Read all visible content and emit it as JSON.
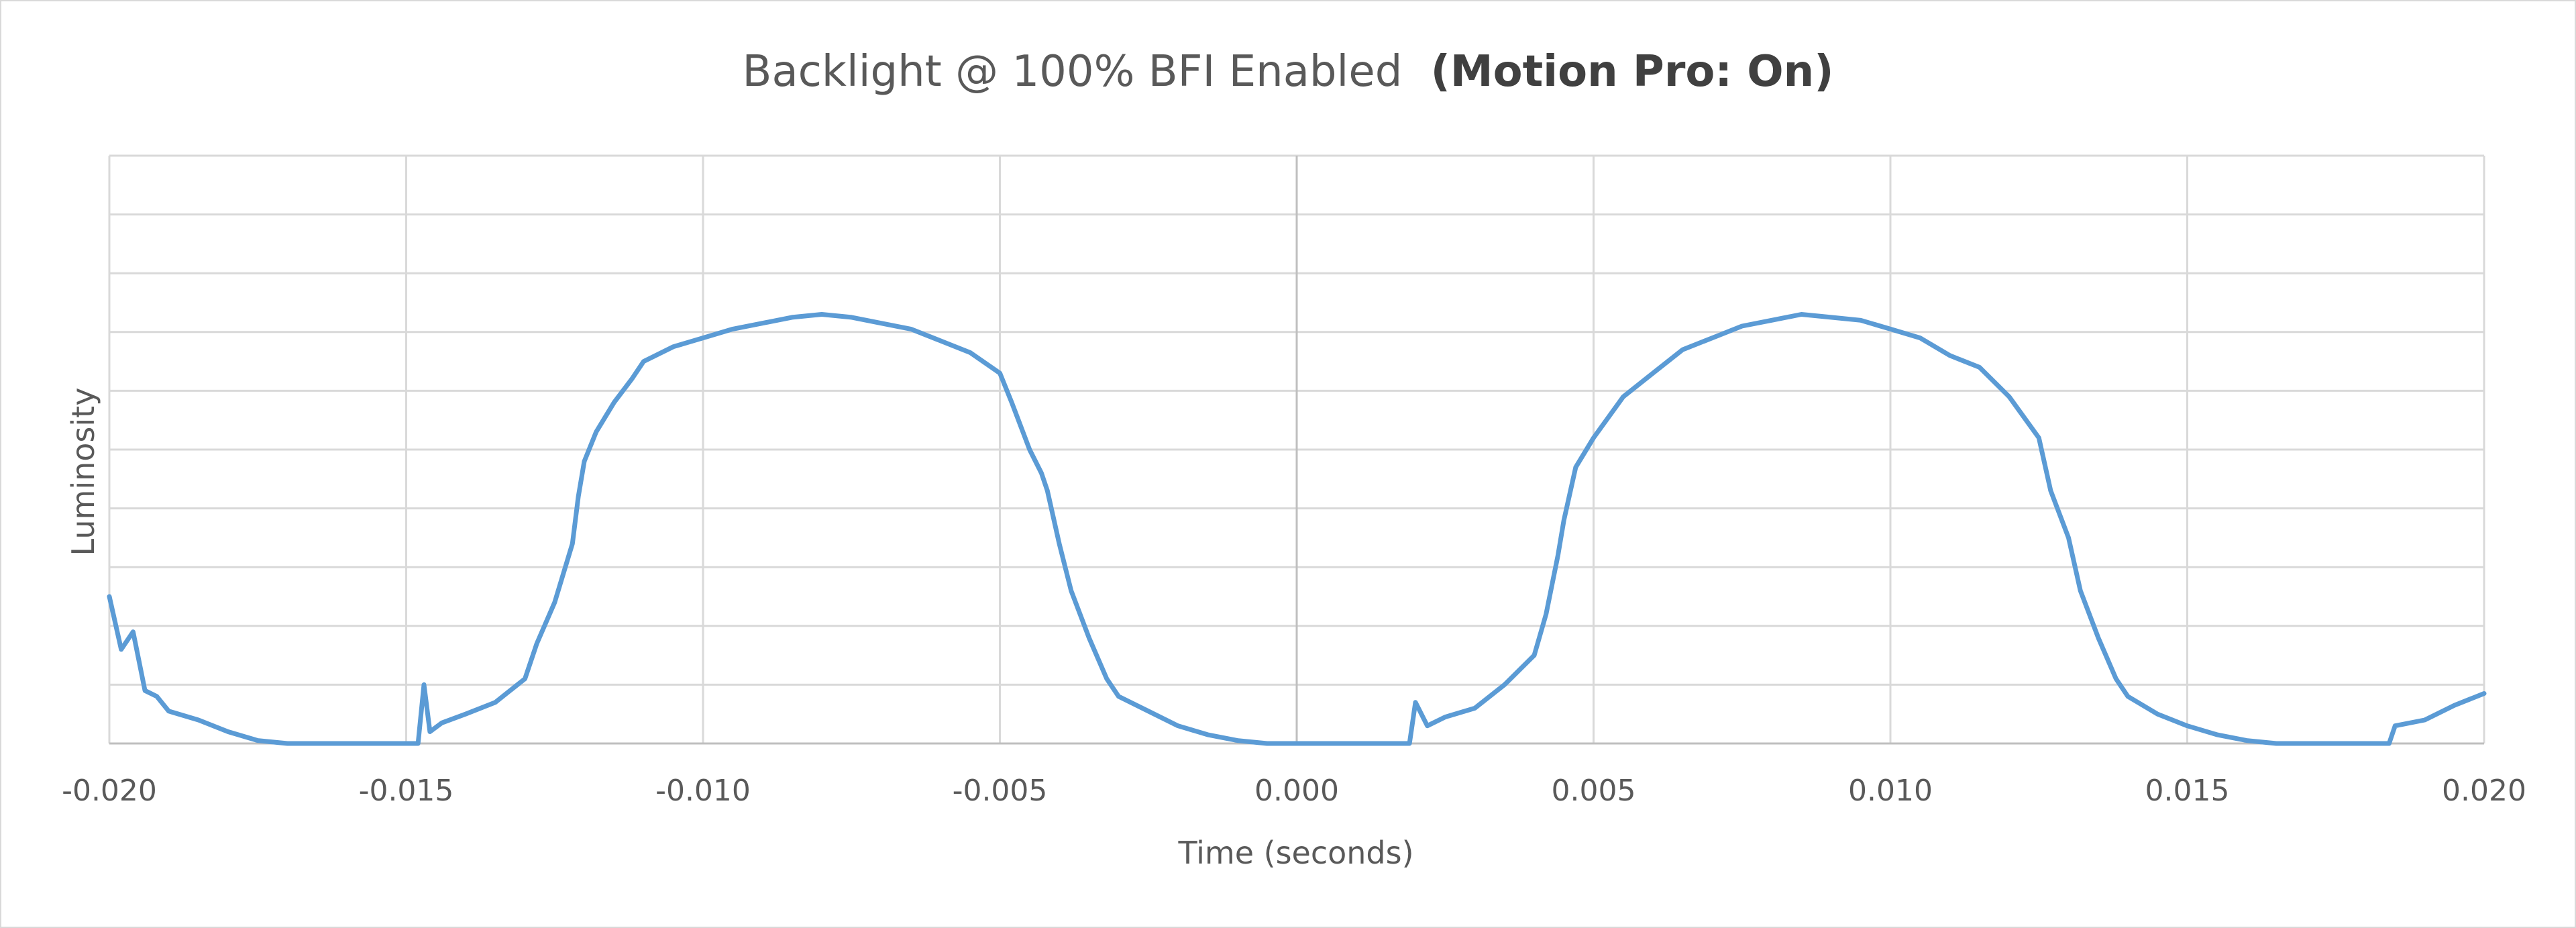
{
  "chart_data": {
    "type": "line",
    "title": "Backlight @ 100% BFI Enabled",
    "title_bold": "(Motion Pro: On)",
    "xlabel": "Time (seconds)",
    "ylabel": "Luminosity",
    "xlim": [
      -0.02,
      0.02
    ],
    "ylim": [
      0,
      10
    ],
    "x_ticks": [
      -0.02,
      -0.015,
      -0.01,
      -0.005,
      0,
      0.005,
      0.01,
      0.015,
      0.02
    ],
    "x_tick_labels": [
      "-0.020",
      "-0.015",
      "-0.010",
      "-0.005",
      "0.000",
      "0.005",
      "0.010",
      "0.015",
      "0.020"
    ],
    "y_gridlines": [
      1,
      2,
      3,
      4,
      5,
      6,
      7,
      8,
      9,
      10
    ],
    "y_tick_labels_visible": false,
    "grid": true,
    "line_color": "#5b9bd5",
    "series": [
      {
        "values": [
          [
            -0.02,
            2.5
          ],
          [
            -0.0198,
            1.6
          ],
          [
            -0.0196,
            1.9
          ],
          [
            -0.0194,
            0.9
          ],
          [
            -0.0192,
            0.8
          ],
          [
            -0.019,
            0.55
          ],
          [
            -0.0185,
            0.4
          ],
          [
            -0.018,
            0.2
          ],
          [
            -0.0175,
            0.05
          ],
          [
            -0.017,
            0.0
          ],
          [
            -0.016,
            0.0
          ],
          [
            -0.015,
            0.0
          ],
          [
            -0.0148,
            0.0
          ],
          [
            -0.0147,
            1.0
          ],
          [
            -0.0146,
            0.2
          ],
          [
            -0.0144,
            0.35
          ],
          [
            -0.014,
            0.5
          ],
          [
            -0.0135,
            0.7
          ],
          [
            -0.013,
            1.1
          ],
          [
            -0.0128,
            1.7
          ],
          [
            -0.0125,
            2.4
          ],
          [
            -0.0122,
            3.4
          ],
          [
            -0.0121,
            4.2
          ],
          [
            -0.012,
            4.8
          ],
          [
            -0.0118,
            5.3
          ],
          [
            -0.0115,
            5.8
          ],
          [
            -0.0112,
            6.2
          ],
          [
            -0.011,
            6.5
          ],
          [
            -0.0105,
            6.75
          ],
          [
            -0.01,
            6.9
          ],
          [
            -0.0095,
            7.05
          ],
          [
            -0.009,
            7.15
          ],
          [
            -0.0085,
            7.25
          ],
          [
            -0.008,
            7.3
          ],
          [
            -0.0075,
            7.25
          ],
          [
            -0.007,
            7.15
          ],
          [
            -0.0065,
            7.05
          ],
          [
            -0.006,
            6.85
          ],
          [
            -0.0055,
            6.65
          ],
          [
            -0.005,
            6.3
          ],
          [
            -0.0048,
            5.8
          ],
          [
            -0.0045,
            5.0
          ],
          [
            -0.0043,
            4.6
          ],
          [
            -0.0042,
            4.3
          ],
          [
            -0.004,
            3.4
          ],
          [
            -0.0038,
            2.6
          ],
          [
            -0.0035,
            1.8
          ],
          [
            -0.0032,
            1.1
          ],
          [
            -0.003,
            0.8
          ],
          [
            -0.0025,
            0.55
          ],
          [
            -0.002,
            0.3
          ],
          [
            -0.0015,
            0.15
          ],
          [
            -0.001,
            0.05
          ],
          [
            -0.0005,
            0.0
          ],
          [
            0.0,
            0.0
          ],
          [
            0.001,
            0.0
          ],
          [
            0.0019,
            0.0
          ],
          [
            0.002,
            0.7
          ],
          [
            0.0022,
            0.3
          ],
          [
            0.0025,
            0.45
          ],
          [
            0.003,
            0.6
          ],
          [
            0.0035,
            1.0
          ],
          [
            0.004,
            1.5
          ],
          [
            0.0042,
            2.2
          ],
          [
            0.0044,
            3.2
          ],
          [
            0.0045,
            3.8
          ],
          [
            0.0047,
            4.7
          ],
          [
            0.005,
            5.2
          ],
          [
            0.0055,
            5.9
          ],
          [
            0.006,
            6.3
          ],
          [
            0.0065,
            6.7
          ],
          [
            0.007,
            6.9
          ],
          [
            0.0075,
            7.1
          ],
          [
            0.008,
            7.2
          ],
          [
            0.0085,
            7.3
          ],
          [
            0.009,
            7.25
          ],
          [
            0.0095,
            7.2
          ],
          [
            0.01,
            7.05
          ],
          [
            0.0105,
            6.9
          ],
          [
            0.011,
            6.6
          ],
          [
            0.0115,
            6.4
          ],
          [
            0.012,
            5.9
          ],
          [
            0.0125,
            5.2
          ],
          [
            0.0127,
            4.3
          ],
          [
            0.013,
            3.5
          ],
          [
            0.0132,
            2.6
          ],
          [
            0.0135,
            1.8
          ],
          [
            0.0138,
            1.1
          ],
          [
            0.014,
            0.8
          ],
          [
            0.0145,
            0.5
          ],
          [
            0.015,
            0.3
          ],
          [
            0.0155,
            0.15
          ],
          [
            0.016,
            0.05
          ],
          [
            0.0165,
            0.0
          ],
          [
            0.018,
            0.0
          ],
          [
            0.0184,
            0.0
          ],
          [
            0.0185,
            0.3
          ],
          [
            0.019,
            0.4
          ],
          [
            0.0195,
            0.65
          ],
          [
            0.02,
            0.85
          ]
        ]
      }
    ]
  }
}
